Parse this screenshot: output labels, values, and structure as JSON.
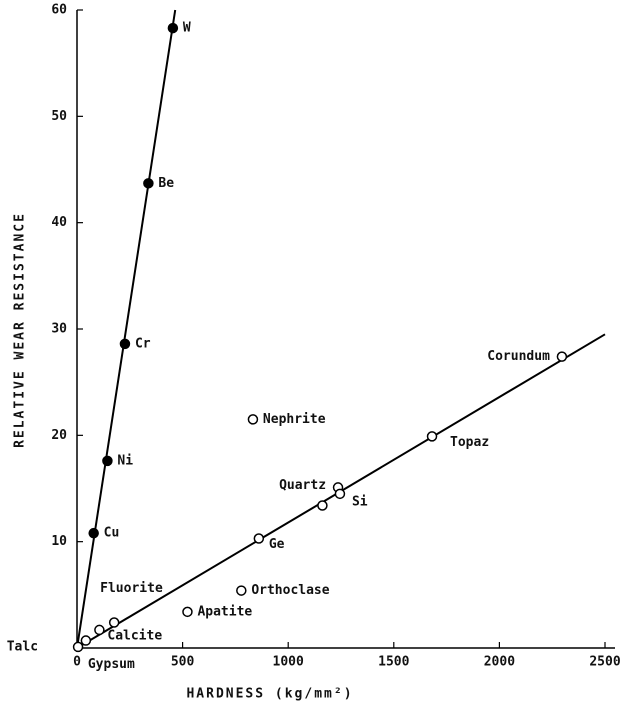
{
  "chart_data": {
    "type": "scatter",
    "xlabel": "HARDNESS (kg/mm²)",
    "ylabel": "RELATIVE WEAR RESISTANCE",
    "xlim": [
      0,
      2500
    ],
    "ylim": [
      0,
      60
    ],
    "xticks": [
      0,
      500,
      1000,
      1500,
      2000,
      2500
    ],
    "yticks": [
      10,
      20,
      30,
      40,
      50,
      60
    ],
    "color": "#000000",
    "series": [
      {
        "marker": "filled",
        "labels": [
          "W",
          "Be",
          "Cr",
          "Ni",
          "Cu"
        ],
        "x": [
          454,
          338,
          227,
          144,
          79
        ],
        "values": [
          58.3,
          43.7,
          28.6,
          17.6,
          10.8
        ]
      },
      {
        "marker": "open",
        "labels": [
          "Talc",
          "Gypsum",
          "Calcite",
          "Fluorite",
          "Apatite",
          "Orthoclase",
          "Ge",
          "Nephrite",
          null,
          "Quartz",
          "Si",
          "Topaz",
          "Corundum"
        ],
        "x": [
          5,
          42,
          106,
          176,
          523,
          778,
          861,
          833,
          1162,
          1236,
          1245,
          1681,
          2296
        ],
        "values": [
          0.1,
          0.7,
          1.7,
          2.4,
          3.4,
          5.4,
          10.3,
          21.5,
          13.4,
          15.1,
          14.5,
          19.9,
          27.4
        ]
      }
    ],
    "lines": [
      {
        "x": [
          0,
          465
        ],
        "values": [
          0,
          60
        ]
      },
      {
        "x": [
          0,
          2500
        ],
        "values": [
          0,
          29.5
        ]
      }
    ]
  }
}
